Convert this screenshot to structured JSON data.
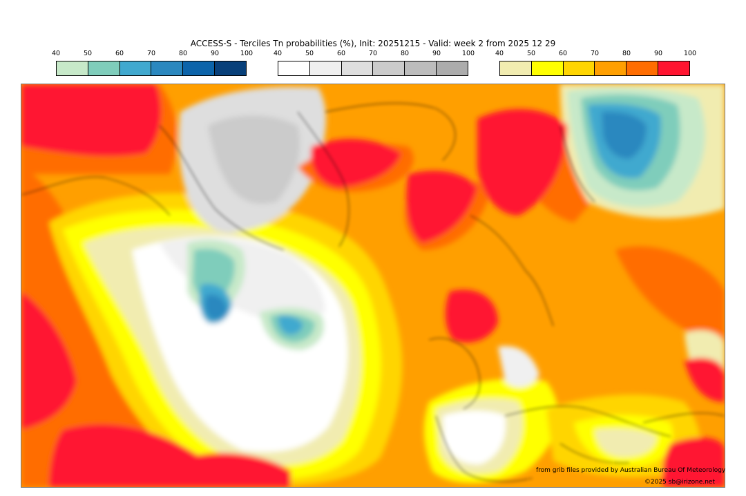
{
  "title": "ACCESS-S - Terciles Tn probabilities (%), Init: 20251215 - Valid: week 2 from 2025 12 29",
  "legends": [
    {
      "ticks": [
        "40",
        "50",
        "60",
        "70",
        "80",
        "90",
        "100"
      ],
      "colors": [
        "#c7e9c9",
        "#7fcdbb",
        "#41a9cf",
        "#2b88bf",
        "#0c64aa",
        "#08407a"
      ]
    },
    {
      "ticks": [
        "40",
        "50",
        "60",
        "70",
        "80",
        "90",
        "100"
      ],
      "colors": [
        "#ffffff",
        "#f0f0f0",
        "#dedede",
        "#cbcbcb",
        "#bcbcbc",
        "#acacac"
      ]
    },
    {
      "ticks": [
        "40",
        "50",
        "60",
        "70",
        "80",
        "90",
        "100"
      ],
      "colors": [
        "#f1ecb0",
        "#ffff00",
        "#ffd500",
        "#ff9f00",
        "#ff6d00",
        "#ff1430"
      ]
    }
  ],
  "credits": {
    "source": "from grib files provided by Australian Bureau Of Meteorology",
    "copyright": "©2025 sb@irizone.net"
  }
}
